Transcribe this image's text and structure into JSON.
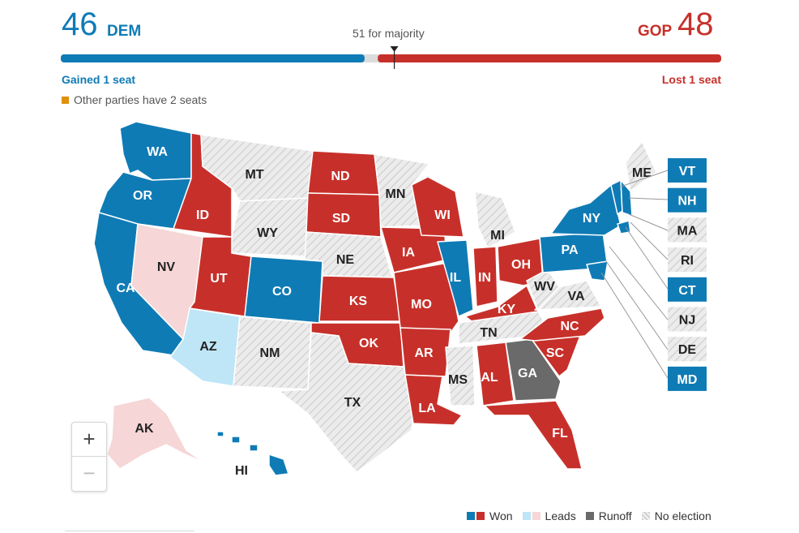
{
  "header": {
    "dem_count": "46",
    "dem_label": "DEM",
    "gop_label": "GOP",
    "gop_count": "48",
    "majority_label": "51 for majority",
    "dem_change": "Gained 1 seat",
    "gop_change": "Lost 1 seat",
    "other_note": "Other parties have 2 seats"
  },
  "seats": {
    "dem": 46,
    "other": 2,
    "gop": 48,
    "total": 100,
    "majority": 51
  },
  "colors": {
    "dem": "#0f7bb5",
    "gop": "#c7302a",
    "dem_lead": "#bfe6f7",
    "gop_lead": "#f6d6d6",
    "runoff": "#6a6a6a",
    "no_election": "#e2e2e2",
    "other": "#e0900e"
  },
  "map": {
    "states": {
      "WA": "dem",
      "OR": "dem",
      "CA": "dem",
      "NV": "gop_lead",
      "ID": "gop",
      "MT": "none",
      "WY": "none",
      "UT": "gop",
      "CO": "dem",
      "AZ": "dem_lead",
      "NM": "none",
      "ND": "gop",
      "SD": "gop",
      "NE": "none",
      "KS": "gop",
      "OK": "gop",
      "TX": "none",
      "MN": "none",
      "IA": "gop",
      "MO": "gop",
      "AR": "gop",
      "LA": "gop",
      "WI": "gop",
      "IL": "dem",
      "MI": "none",
      "IN": "gop",
      "OH": "gop",
      "KY": "gop",
      "TN": "none",
      "MS": "none",
      "AL": "gop",
      "GA": "runoff",
      "FL": "gop",
      "SC": "gop",
      "NC": "gop",
      "VA": "none",
      "WV": "none",
      "PA": "dem",
      "NY": "dem",
      "ME": "none",
      "AK": "gop_lead",
      "HI": "dem"
    },
    "labels": {
      "WA": "WA",
      "OR": "OR",
      "CA": "CA",
      "NV": "NV",
      "ID": "ID",
      "MT": "MT",
      "WY": "WY",
      "UT": "UT",
      "CO": "CO",
      "AZ": "AZ",
      "NM": "NM",
      "ND": "ND",
      "SD": "SD",
      "NE": "NE",
      "KS": "KS",
      "OK": "OK",
      "TX": "TX",
      "MN": "MN",
      "IA": "IA",
      "MO": "MO",
      "AR": "AR",
      "LA": "LA",
      "WI": "WI",
      "IL": "IL",
      "MI": "MI",
      "IN": "IN",
      "OH": "OH",
      "KY": "KY",
      "TN": "TN",
      "MS": "MS",
      "AL": "AL",
      "GA": "GA",
      "FL": "FL",
      "SC": "SC",
      "NC": "NC",
      "VA": "VA",
      "WV": "WV",
      "PA": "PA",
      "NY": "NY",
      "ME": "ME",
      "AK": "AK",
      "HI": "HI"
    },
    "small_states": [
      {
        "label": "VT",
        "status": "dem"
      },
      {
        "label": "NH",
        "status": "dem"
      },
      {
        "label": "MA",
        "status": "none"
      },
      {
        "label": "RI",
        "status": "none"
      },
      {
        "label": "CT",
        "status": "dem"
      },
      {
        "label": "NJ",
        "status": "none"
      },
      {
        "label": "DE",
        "status": "none"
      },
      {
        "label": "MD",
        "status": "dem"
      }
    ]
  },
  "zoom": {
    "in": "+",
    "out": "−"
  },
  "legend": {
    "won": "Won",
    "leads": "Leads",
    "runoff": "Runoff",
    "no_election": "No election"
  }
}
